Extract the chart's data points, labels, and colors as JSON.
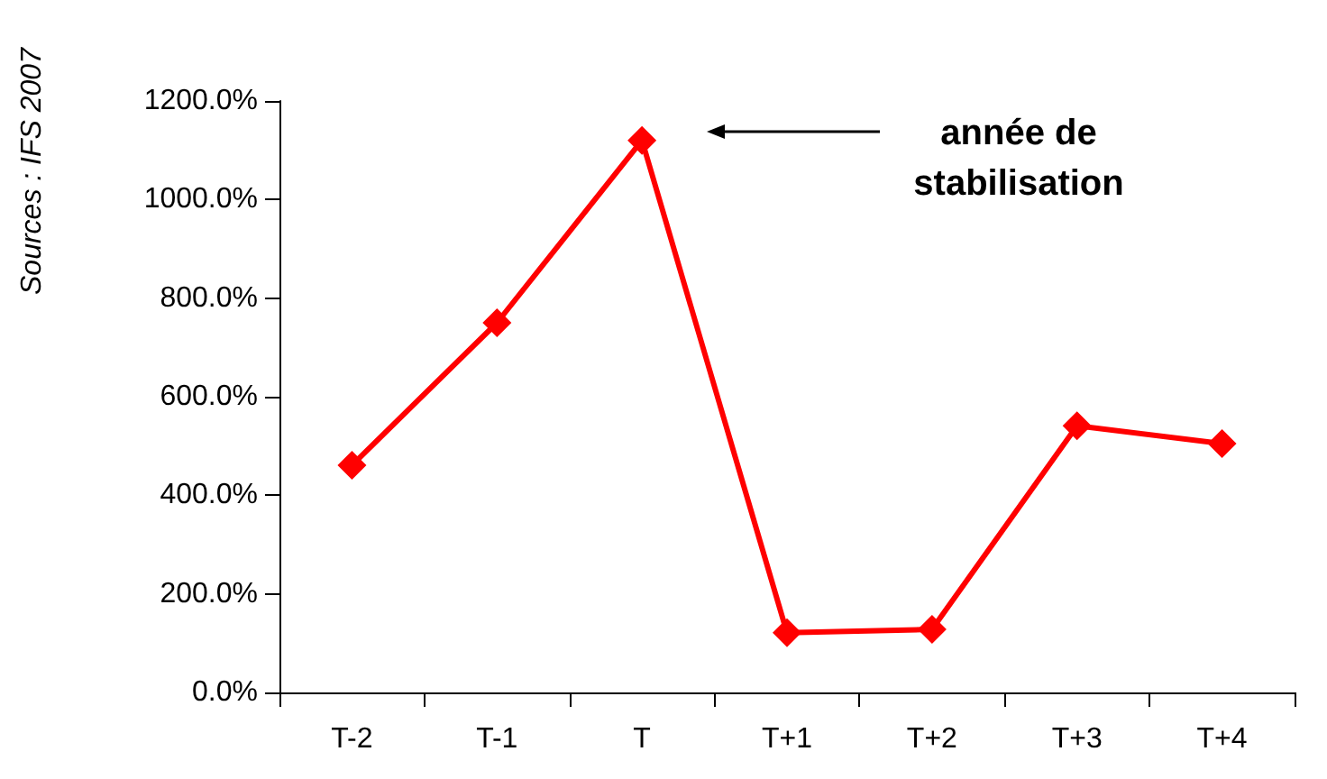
{
  "chart_data": {
    "type": "line",
    "categories": [
      "T-2",
      "T-1",
      "T",
      "T+1",
      "T+2",
      "T+3",
      "T+4"
    ],
    "series": [
      {
        "color": "#ff0000",
        "values": [
          461,
          750,
          1120,
          121,
          128,
          541,
          505
        ]
      }
    ],
    "ylim": [
      0,
      1200
    ],
    "yticks": [
      {
        "value": 0,
        "label": "0.0%"
      },
      {
        "value": 200,
        "label": "200.0%"
      },
      {
        "value": 400,
        "label": "400.0%"
      },
      {
        "value": 600,
        "label": "600.0%"
      },
      {
        "value": 800,
        "label": "800.0%"
      },
      {
        "value": 1000,
        "label": "1000.0%"
      },
      {
        "value": 1200,
        "label": "1200.0%"
      }
    ],
    "grid": false,
    "marker": "diamond",
    "line_style": "solid",
    "annotations": [
      "année de\nstabilisation",
      "Sources : IFS 2007"
    ]
  }
}
